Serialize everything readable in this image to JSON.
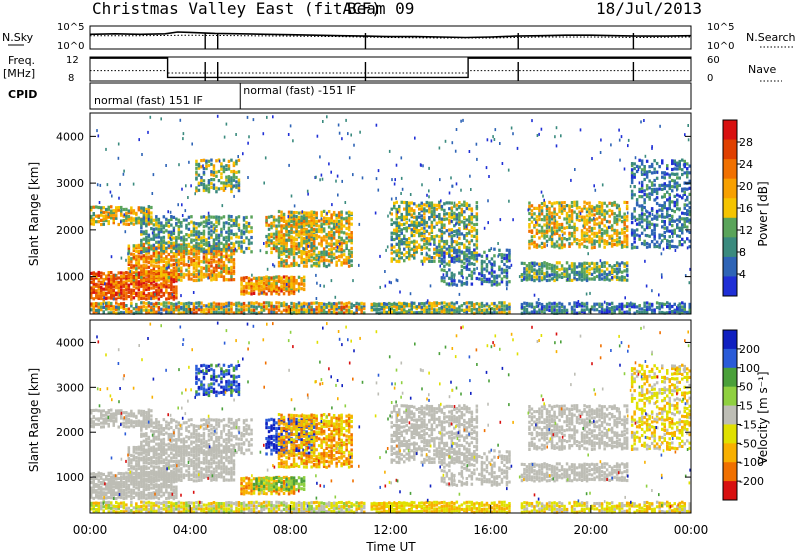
{
  "header": {
    "title": "Christmas Valley East (fitACF)",
    "beam": "Beam 09",
    "date": "18/Jul/2013"
  },
  "colors": {
    "power_scale": [
      "#1f2fd6",
      "#2e64b6",
      "#3a8a7e",
      "#5aa45a",
      "#f5c400",
      "#f7a000",
      "#f07000",
      "#e04000",
      "#d81010"
    ],
    "velocity_scale": [
      "#1020c0",
      "#2a5bd8",
      "#4aa03a",
      "#8fd040",
      "#bdbdb5",
      "#e0e000",
      "#f8b000",
      "#f07000",
      "#d81010"
    ]
  },
  "chart_data": [
    {
      "type": "line",
      "name": "noise-panel",
      "ylabel_left": "N.Sky",
      "ylabel_right": "N.Search",
      "left_ticks": [
        "10^5",
        "10^0"
      ],
      "right_ticks": [
        "10^5",
        "10^0"
      ],
      "series": [
        {
          "name": "N.Sky",
          "style": "solid",
          "x": [
            0,
            1,
            2,
            3,
            3.5,
            4,
            5,
            6,
            7,
            8,
            9,
            10,
            11,
            12,
            13,
            14,
            15,
            16,
            17,
            18,
            19,
            20,
            21,
            22,
            23,
            24
          ],
          "y": [
            3.2,
            3.3,
            3.2,
            3.3,
            3.7,
            3.6,
            3.4,
            3.3,
            3.2,
            3.1,
            3.0,
            2.9,
            2.8,
            2.7,
            2.7,
            2.6,
            2.5,
            2.6,
            2.8,
            2.9,
            3.0,
            3.0,
            2.9,
            2.8,
            2.8,
            2.9
          ]
        },
        {
          "name": "N.Search",
          "style": "dotted",
          "x": [
            0,
            2,
            4,
            6,
            8,
            10,
            12,
            14,
            16,
            18,
            20,
            22,
            24
          ],
          "y": [
            2.9,
            2.9,
            3.0,
            2.9,
            2.8,
            2.7,
            2.5,
            2.4,
            2.4,
            2.6,
            2.6,
            2.5,
            2.6
          ]
        }
      ]
    },
    {
      "type": "line",
      "name": "frequency-panel",
      "ylabel_left": "Freq.",
      "ylabel_left_unit": "[MHz]",
      "ylabel_right": "Nave",
      "left_ticks": [
        "12",
        "8"
      ],
      "right_ticks": [
        "60",
        "0"
      ],
      "ylim_left": [
        8,
        12
      ],
      "ylim_right": [
        0,
        60
      ],
      "series": [
        {
          "name": "Freq",
          "style": "solid",
          "x": [
            0,
            3.1,
            3.1,
            15.1,
            15.1,
            24
          ],
          "y": [
            11.8,
            11.8,
            8.6,
            8.6,
            11.8,
            11.8
          ]
        },
        {
          "name": "Nave",
          "style": "dotted",
          "x": [
            0,
            3.1,
            3.1,
            15.1,
            15.1,
            24
          ],
          "y": [
            26,
            26,
            20,
            20,
            26,
            26
          ]
        }
      ]
    },
    {
      "type": "table",
      "name": "cpid-panel",
      "label": "CPID",
      "segments": [
        {
          "start": 0,
          "end": 6.0,
          "label": "normal (fast) 151 IF"
        },
        {
          "start": 6.0,
          "end": 24,
          "label": "normal (fast) -151 IF"
        }
      ]
    },
    {
      "type": "heatmap",
      "name": "power-panel",
      "xlabel": "",
      "ylabel": "Slant Range [km]",
      "ylim": [
        200,
        4500
      ],
      "yticks": [
        "1000",
        "2000",
        "3000",
        "4000"
      ],
      "colorbar_label": "Power [dB]",
      "colorbar_ticks": [
        "4",
        "8",
        "12",
        "16",
        "20",
        "24",
        "28"
      ],
      "colorbar_range": [
        0,
        32
      ]
    },
    {
      "type": "heatmap",
      "name": "velocity-panel",
      "xlabel": "Time UT",
      "ylabel": "Slant Range [km]",
      "ylim": [
        200,
        4500
      ],
      "yticks": [
        "1000",
        "2000",
        "3000",
        "4000"
      ],
      "xticks": [
        "00:00",
        "04:00",
        "08:00",
        "12:00",
        "16:00",
        "20:00",
        "00:00"
      ],
      "xlim": [
        0,
        24
      ],
      "colorbar_label": "Velocity [m s⁻¹]",
      "colorbar_ticks": [
        "200",
        "100",
        "50",
        "15",
        "-15",
        "-50",
        "-100",
        "-200"
      ]
    }
  ]
}
